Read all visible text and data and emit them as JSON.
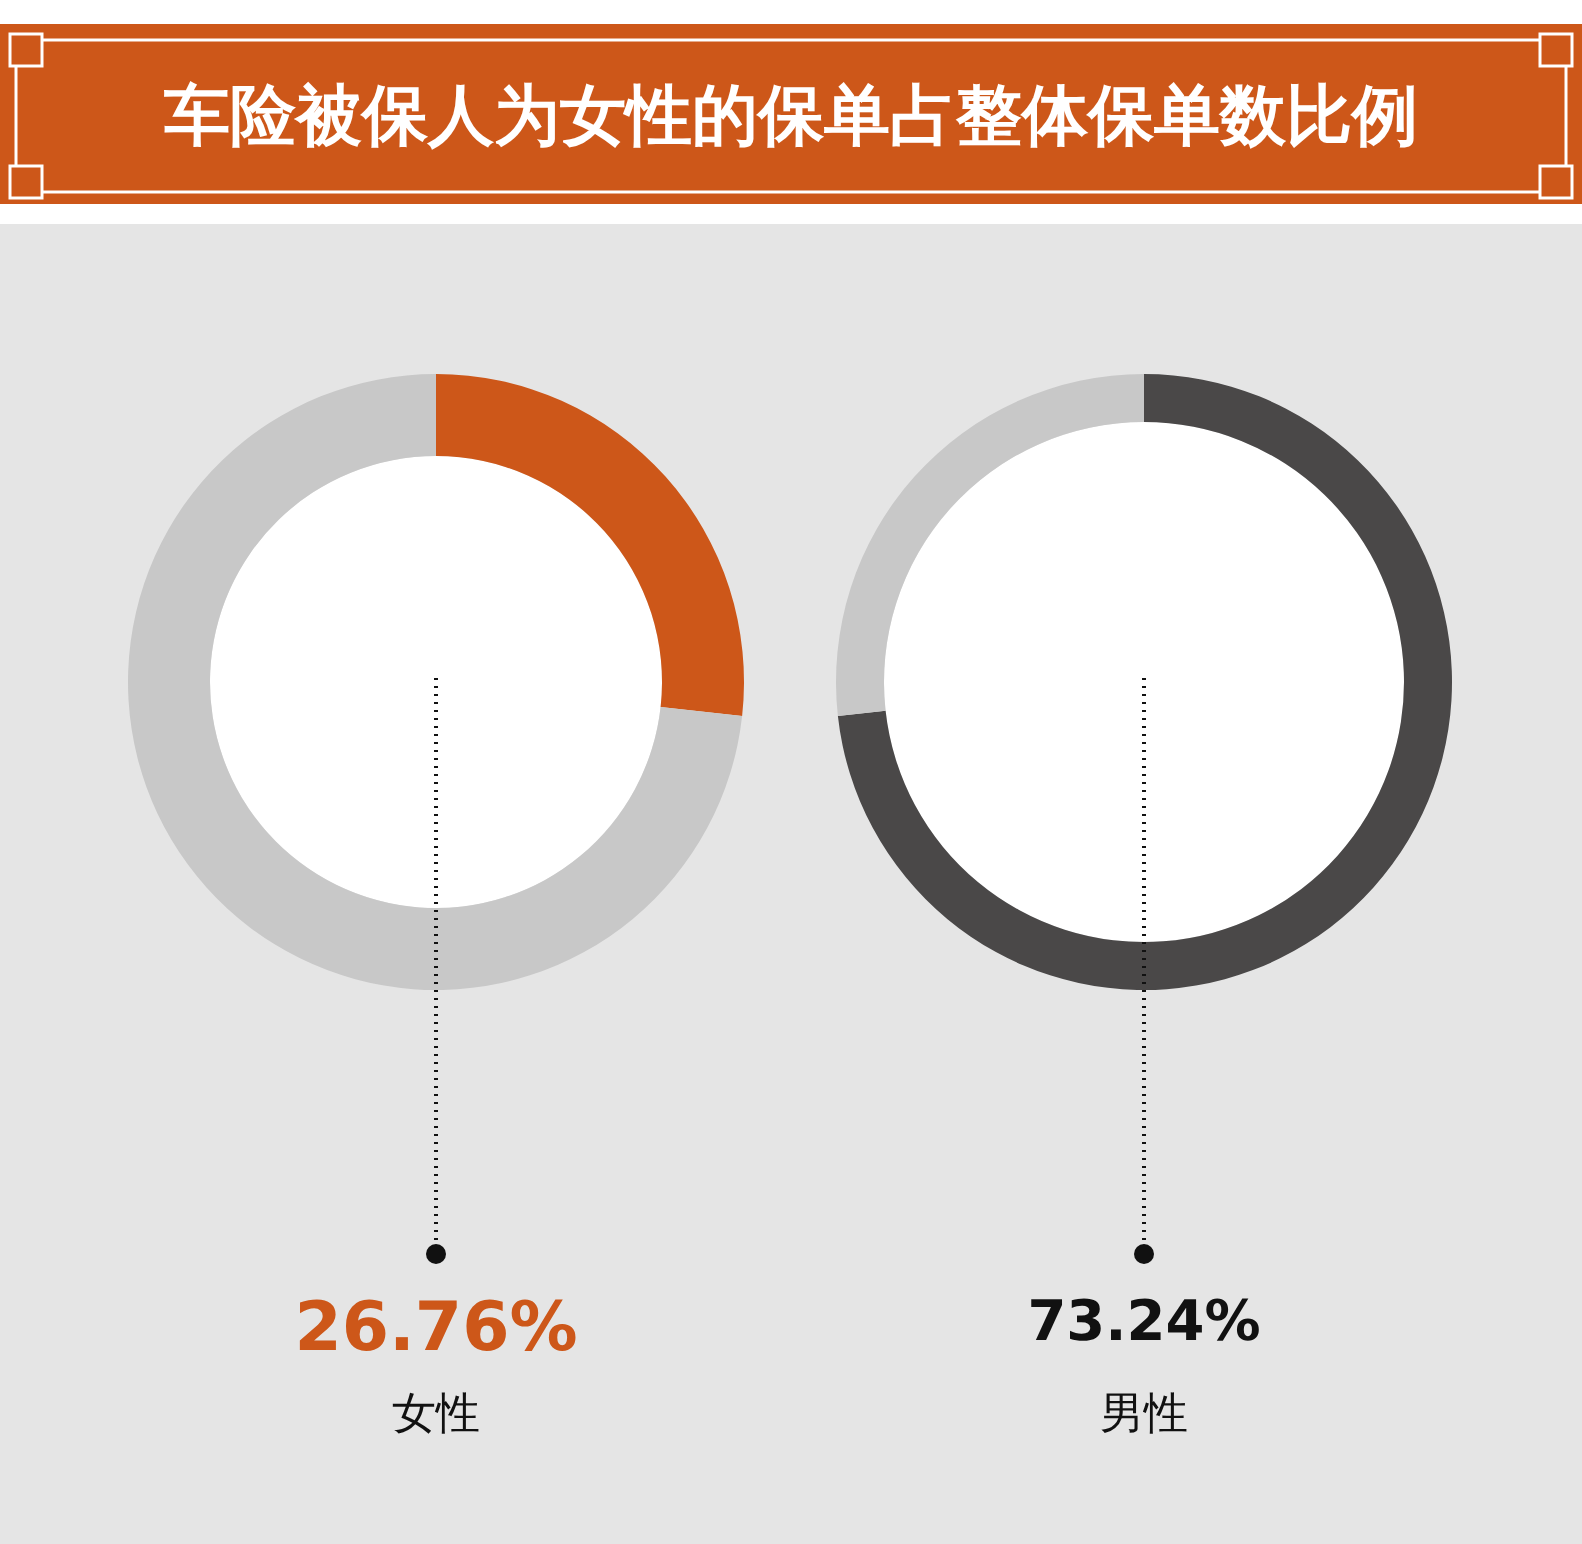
{
  "chart_data": [
    {
      "type": "donut",
      "title": "车险被保人为女性的保单占整体保单数比例",
      "categories": [
        "女性",
        null
      ],
      "values": [
        26.76,
        73.24
      ],
      "colors": [
        "#cd5719",
        "#c8c8c8"
      ],
      "value_labels": [
        "26.76%",
        null
      ]
    },
    {
      "type": "donut",
      "categories": [
        "男性",
        null
      ],
      "values": [
        73.24,
        26.76
      ],
      "colors": [
        "#4a4848",
        "#c8c8c8"
      ],
      "value_labels": [
        "73.24%",
        null
      ]
    }
  ]
}
